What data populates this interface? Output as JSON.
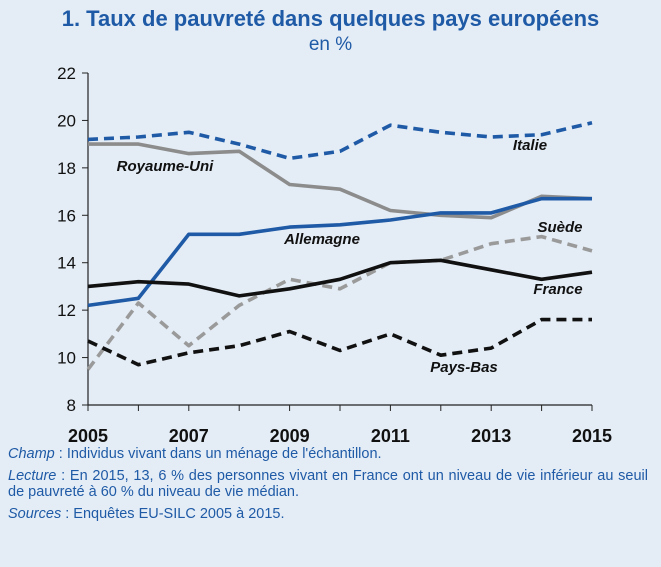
{
  "title": "1. Taux de pauvreté dans quelques pays européens",
  "subtitle": "en %",
  "chart_data": {
    "type": "line",
    "title": "1. Taux de pauvreté dans quelques pays européens",
    "subtitle": "en %",
    "x": [
      2005,
      2006,
      2007,
      2008,
      2009,
      2010,
      2011,
      2012,
      2013,
      2014,
      2015
    ],
    "x_tick_labels": [
      "2005",
      "2007",
      "2009",
      "2011",
      "2013",
      "2015"
    ],
    "y_ticks": [
      8,
      10,
      12,
      14,
      16,
      18,
      20,
      22
    ],
    "ylim": [
      8,
      22
    ],
    "xlim": [
      2005,
      2015
    ],
    "grid": false,
    "series": [
      {
        "name": "Italie",
        "color": "#1f5aa6",
        "dash": true,
        "values": [
          19.2,
          19.3,
          19.5,
          19.0,
          18.4,
          18.7,
          19.8,
          19.5,
          19.3,
          19.4,
          19.9
        ]
      },
      {
        "name": "Royaume-Uni",
        "color": "#8c8c8c",
        "dash": false,
        "values": [
          19.0,
          19.0,
          18.6,
          18.7,
          17.3,
          17.1,
          16.2,
          16.0,
          15.9,
          16.8,
          16.7
        ]
      },
      {
        "name": "Allemagne",
        "color": "#1f5aa6",
        "dash": false,
        "values": [
          12.2,
          12.5,
          15.2,
          15.2,
          15.5,
          15.6,
          15.8,
          16.1,
          16.1,
          16.7,
          16.7
        ]
      },
      {
        "name": "Suède",
        "color": "#9a9a9a",
        "dash": true,
        "values": [
          9.5,
          12.3,
          10.5,
          12.2,
          13.3,
          12.9,
          14.0,
          14.1,
          14.8,
          15.1,
          14.5
        ]
      },
      {
        "name": "France",
        "color": "#111111",
        "dash": false,
        "values": [
          13.0,
          13.2,
          13.1,
          12.6,
          12.9,
          13.3,
          14.0,
          14.1,
          13.7,
          13.3,
          13.6
        ]
      },
      {
        "name": "Pays-Bas",
        "color": "#111111",
        "dash": true,
        "values": [
          10.7,
          9.7,
          10.2,
          10.5,
          11.1,
          10.3,
          11.0,
          10.1,
          10.4,
          11.6,
          11.6
        ]
      }
    ]
  },
  "notes": {
    "champ_label": "Champ",
    "champ_text": " : Individus vivant dans un ménage de l'échantillon.",
    "lecture_label": "Lecture",
    "lecture_text": " : En 2015, 13, 6 % des personnes vivant en France ont un niveau de vie inférieur au seuil de pauvreté à 60 % du niveau de vie médian.",
    "sources_label": "Sources",
    "sources_text": " : Enquêtes EU-SILC 2005 à 2015."
  }
}
